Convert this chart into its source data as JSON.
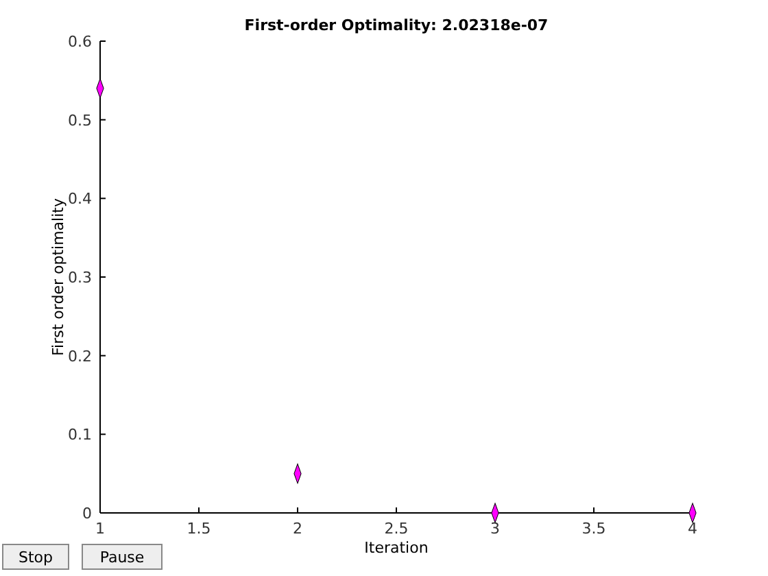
{
  "chart_data": {
    "type": "scatter",
    "title": "First-order Optimality: 2.02318e-07",
    "xlabel": "Iteration",
    "ylabel": "First order optimality",
    "x": [
      1,
      2,
      3,
      4
    ],
    "series": [
      {
        "color": "#ff00ff",
        "values": [
          0.54,
          0.05,
          0,
          0
        ]
      }
    ],
    "xlim": [
      1,
      4
    ],
    "xticks": [
      1,
      1.5,
      2,
      2.5,
      3,
      3.5,
      4
    ],
    "ylim": [
      0,
      0.6
    ],
    "yticks": [
      0,
      0.1,
      0.2,
      0.3,
      0.4,
      0.5,
      0.6
    ],
    "marker": "diamond",
    "grid": false,
    "annotations": [
      "Stop",
      "Pause"
    ]
  }
}
